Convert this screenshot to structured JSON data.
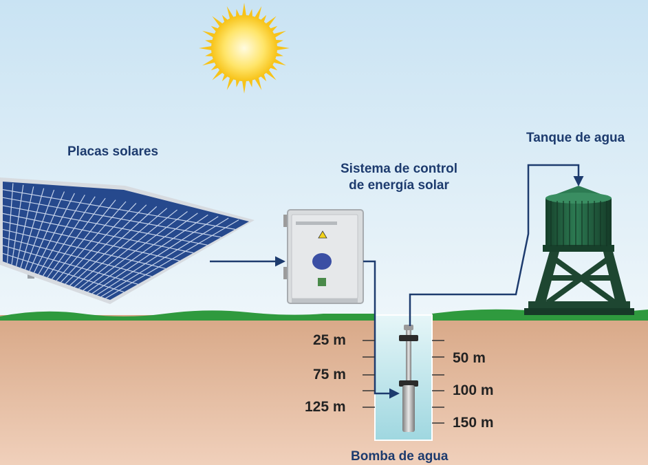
{
  "labels": {
    "solar_panels": "Placas solares",
    "control_line1": "Sistema de control",
    "control_line2": "de energía solar",
    "water_tank": "Tanque de agua",
    "water_pump": "Bomba de agua"
  },
  "depth_markers": {
    "left": [
      "25 m",
      "75 m",
      "125 m"
    ],
    "right": [
      "50 m",
      "100 m",
      "150 m"
    ]
  },
  "colors": {
    "sky_top": "#cfe6f4",
    "sky_bottom": "#eaf4f9",
    "ground": "#e4b89a",
    "grass": "#2f9a3e",
    "label_text": "#1d3b6e",
    "arrow": "#1d3b6e",
    "water": "#bfe4ea",
    "tank": "#1f5a3b"
  }
}
